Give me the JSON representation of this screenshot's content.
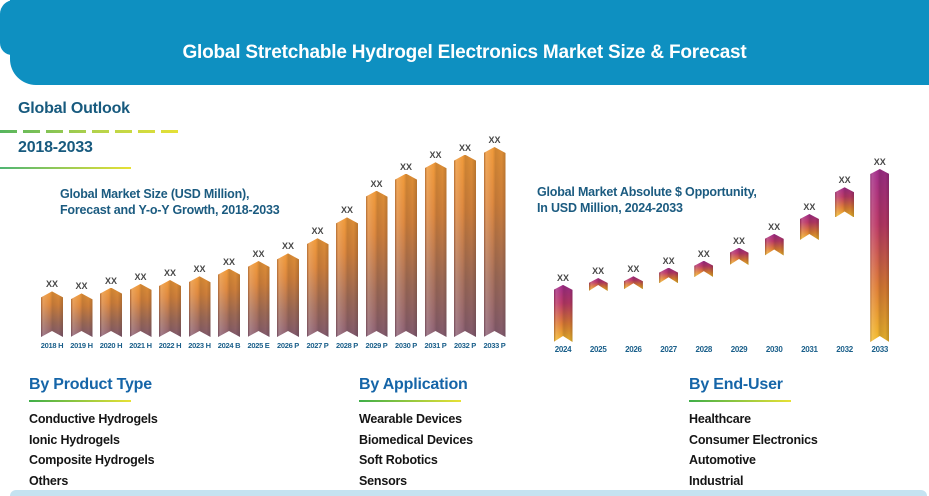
{
  "header": {
    "title": "Global Stretchable Hydrogel Electronics Market Size & Forecast"
  },
  "outlook": {
    "heading": "Global Outlook",
    "period": "2018-2033"
  },
  "chart_data": [
    {
      "type": "bar",
      "variant": "ribbon-bar",
      "title": "Global Market Size (USD Million),\nForecast and Y-o-Y Growth, 2018-2033",
      "ylim": [
        0,
        100
      ],
      "grid": false,
      "legend": false,
      "bars": [
        {
          "category": "2018 H",
          "label": "XX",
          "value": 24
        },
        {
          "category": "2019 H",
          "label": "XX",
          "value": 23
        },
        {
          "category": "2020 H",
          "label": "XX",
          "value": 26
        },
        {
          "category": "2021 H",
          "label": "XX",
          "value": 28
        },
        {
          "category": "2022 H",
          "label": "XX",
          "value": 30
        },
        {
          "category": "2023 H",
          "label": "XX",
          "value": 32
        },
        {
          "category": "2024 B",
          "label": "XX",
          "value": 36
        },
        {
          "category": "2025 E",
          "label": "XX",
          "value": 40
        },
        {
          "category": "2026 P",
          "label": "XX",
          "value": 44
        },
        {
          "category": "2027 P",
          "label": "XX",
          "value": 52
        },
        {
          "category": "2028 P",
          "label": "XX",
          "value": 63
        },
        {
          "category": "2029 P",
          "label": "XX",
          "value": 77
        },
        {
          "category": "2030 P",
          "label": "XX",
          "value": 86
        },
        {
          "category": "2031 P",
          "label": "XX",
          "value": 92
        },
        {
          "category": "2032 P",
          "label": "XX",
          "value": 96
        },
        {
          "category": "2033 P",
          "label": "XX",
          "value": 100
        }
      ]
    },
    {
      "type": "bar",
      "variant": "waterfall-ribbon",
      "title": "Global Market Absolute $ Opportunity,\nIn USD Million, 2024-2033",
      "ylim": [
        0,
        100
      ],
      "grid": false,
      "legend": false,
      "bars": [
        {
          "category": "2024",
          "label": "XX",
          "start": 0,
          "end": 33
        },
        {
          "category": "2025",
          "label": "XX",
          "start": 29.5,
          "end": 37
        },
        {
          "category": "2026",
          "label": "XX",
          "start": 30.5,
          "end": 38
        },
        {
          "category": "2027",
          "label": "XX",
          "start": 34,
          "end": 43
        },
        {
          "category": "2028",
          "label": "XX",
          "start": 37.5,
          "end": 47
        },
        {
          "category": "2029",
          "label": "XX",
          "start": 44.5,
          "end": 54.5
        },
        {
          "category": "2030",
          "label": "XX",
          "start": 50,
          "end": 62.5
        },
        {
          "category": "2031",
          "label": "XX",
          "start": 59,
          "end": 74
        },
        {
          "category": "2032",
          "label": "XX",
          "start": 72,
          "end": 89.5
        },
        {
          "category": "2033",
          "label": "XX",
          "start": 0,
          "end": 100
        }
      ]
    }
  ],
  "segments": [
    {
      "heading": "By Product Type",
      "items": [
        "Conductive Hydrogels",
        "Ionic Hydrogels",
        "Composite Hydrogels",
        "Others"
      ]
    },
    {
      "heading": "By Application",
      "items": [
        "Wearable Devices",
        "Biomedical Devices",
        "Soft Robotics",
        "Sensors"
      ]
    },
    {
      "heading": "By End-User",
      "items": [
        "Healthcare",
        "Consumer Electronics",
        "Automotive",
        "Industrial"
      ]
    }
  ],
  "colors": {
    "header_bg": "#0E90C1",
    "heading_dark": "#175A7E",
    "section_heading_blue": "#1565A8",
    "accent_green": "#56B55E",
    "accent_yellow": "#E8E135",
    "bar_orange_top": "#F09A3A",
    "bar_mauve_bottom": "#8D6277",
    "bar_magenta_top": "#A22E8B",
    "bar_gold_bottom": "#F3BC2D",
    "footer_strip": "#C5E3F1"
  }
}
